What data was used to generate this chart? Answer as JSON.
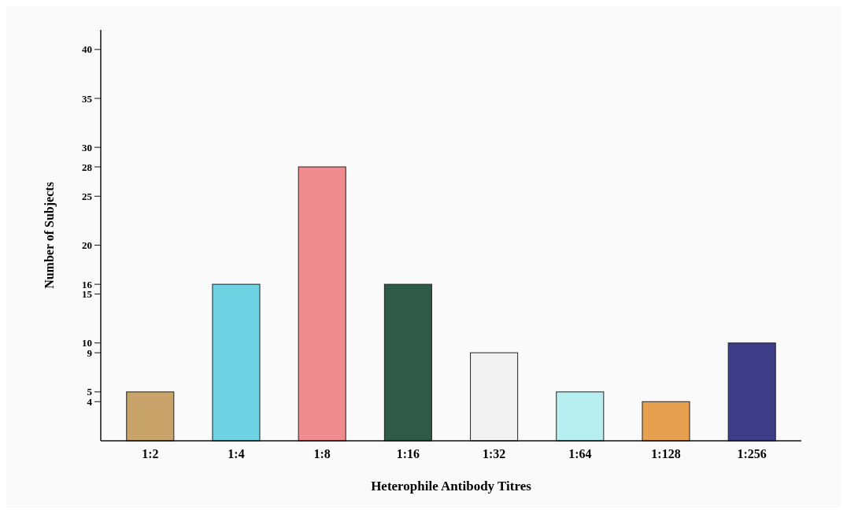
{
  "chart_data": {
    "type": "bar",
    "xlabel": "Heterophile Antibody Titres",
    "ylabel": "Number of Subjects",
    "categories": [
      "1:2",
      "1:4",
      "1:8",
      "1:16",
      "1:32",
      "1:64",
      "1:128",
      "1:256"
    ],
    "values": [
      5,
      16,
      28,
      16,
      9,
      5,
      4,
      10
    ],
    "colors": [
      "#c9a46a",
      "#6fd3e3",
      "#f08c8f",
      "#2f5a47",
      "#f2f2f2",
      "#b7eef0",
      "#e6a050",
      "#3c3d86"
    ],
    "ylim": [
      0,
      42
    ],
    "yticks": [
      4,
      5,
      9,
      10,
      15,
      16,
      20,
      25,
      28,
      30,
      35,
      40
    ],
    "grid": false
  }
}
